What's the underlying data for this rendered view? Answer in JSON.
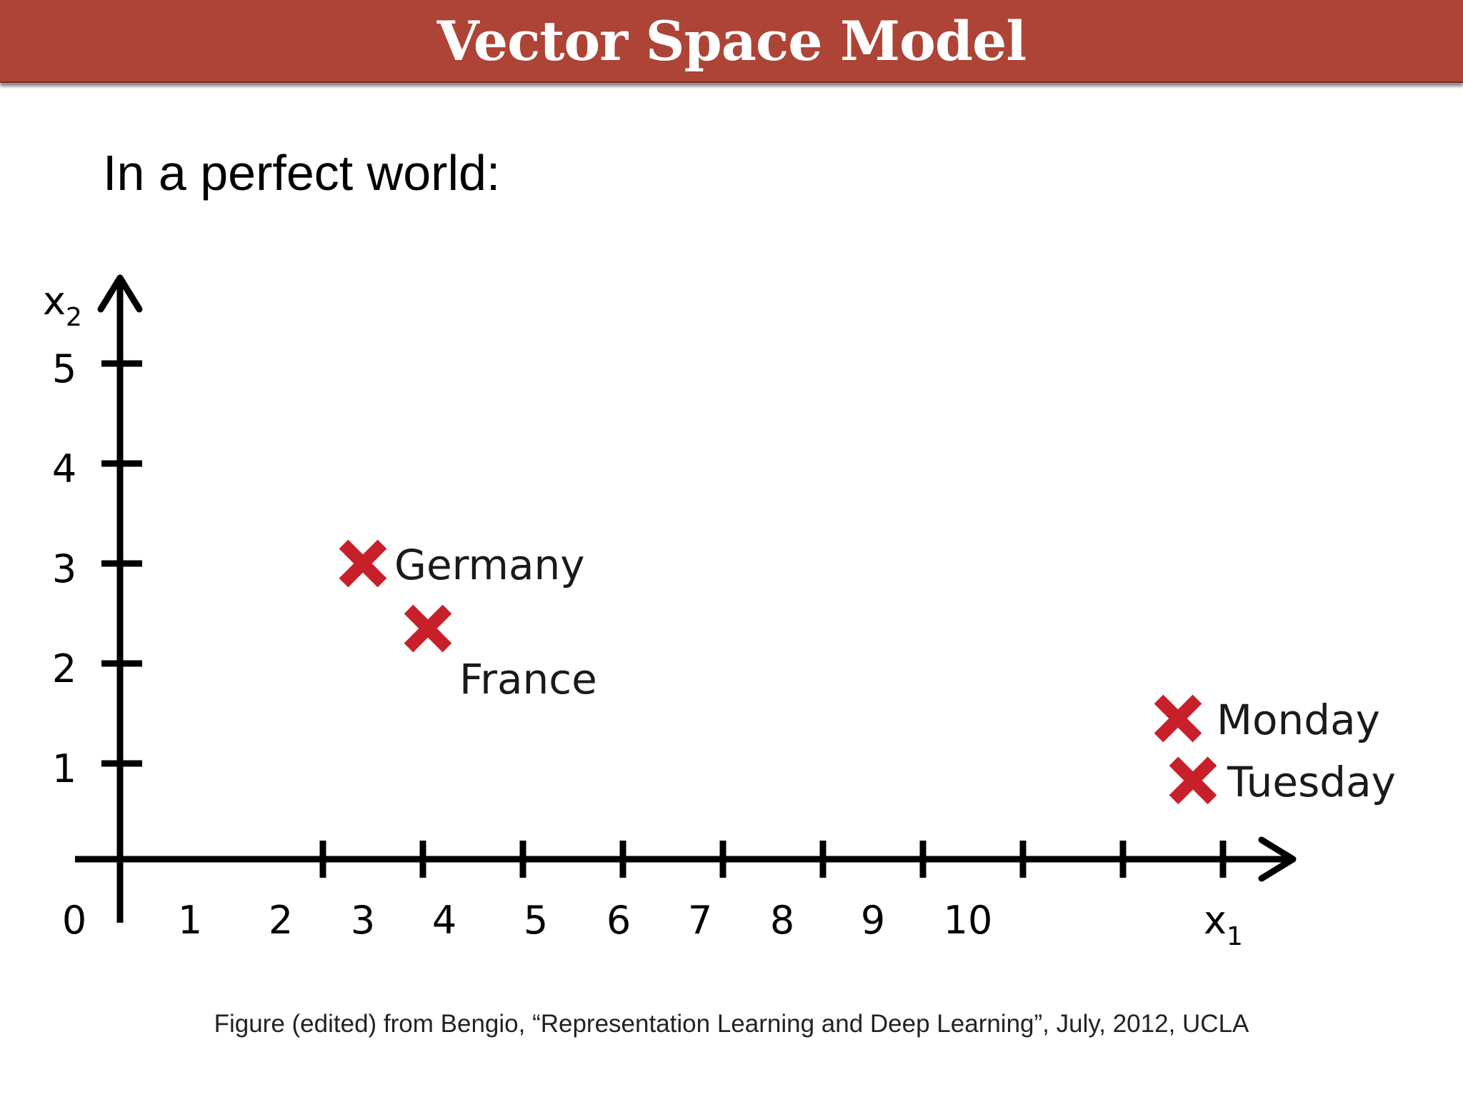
{
  "slide": {
    "title": "Vector Space Model",
    "subtitle": "In a perfect world:",
    "caption": "Figure (edited) from Bengio, “Representation Learning and Deep Learning”, July, 2012, UCLA"
  },
  "colors": {
    "title_bar": "#ad4436",
    "marker": "#c8202b",
    "axis": "#000000"
  },
  "chart_data": {
    "type": "scatter",
    "xlabel": "x",
    "xlabel_subscript": "1",
    "ylabel": "x",
    "ylabel_subscript": "2",
    "origin_label": "0",
    "x_ticks": [
      "1",
      "2",
      "3",
      "4",
      "5",
      "6",
      "7",
      "8",
      "9",
      "10"
    ],
    "y_ticks": [
      "1",
      "2",
      "3",
      "4",
      "5"
    ],
    "xlim": [
      0,
      11.6
    ],
    "ylim": [
      0,
      5.7
    ],
    "grid": false,
    "points": [
      {
        "label": "Germany",
        "x": 1.2,
        "y": 3.0
      },
      {
        "label": "France",
        "x": 1.85,
        "y": 2.35
      },
      {
        "label": "Monday",
        "x": 9.35,
        "y": 1.45
      },
      {
        "label": "Tuesday",
        "x": 9.5,
        "y": 0.83
      }
    ]
  }
}
